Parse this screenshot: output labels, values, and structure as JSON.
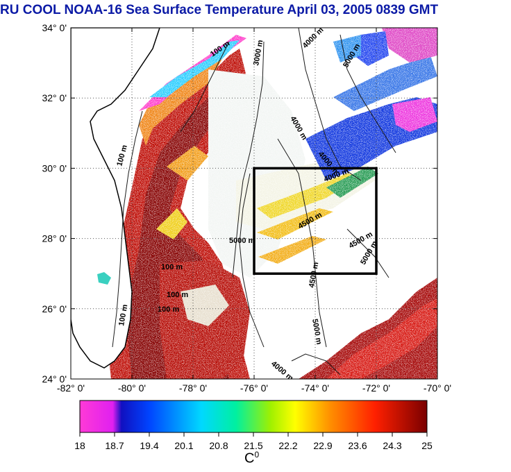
{
  "title": "RU COOL  NOAA-16 Sea Surface Temperature April 03, 2005 0839 GMT",
  "map": {
    "lat_ticks": [
      "34° 0'",
      "32° 0'",
      "30° 0'",
      "28° 0'",
      "26° 0'",
      "24° 0'"
    ],
    "lon_ticks": [
      "-82° 0'",
      "-80° 0'",
      "-78° 0'",
      "-76° 0'",
      "-74° 0'",
      "-72° 0'",
      "-70° 0'"
    ],
    "lat_range": [
      24,
      34
    ],
    "lon_range": [
      -82,
      -70
    ],
    "study_box": {
      "lon": [
        -76,
        -72
      ],
      "lat": [
        27,
        30
      ]
    },
    "contour_labels": [
      "100 m",
      "100 m",
      "100 m",
      "100 m",
      "100 m",
      "100 m",
      "3000 m",
      "4000 m",
      "4000 m",
      "4000 m",
      "4000 m",
      "5000 m",
      "5000 m",
      "5000 m",
      "5000 m",
      "4500 m",
      "4500 m",
      "4500 m",
      "4000 m"
    ]
  },
  "colorbar": {
    "ticks": [
      "18",
      "18.7",
      "19.4",
      "20.1",
      "20.8",
      "21.5",
      "22.2",
      "22.9",
      "23.6",
      "24.3",
      "25"
    ],
    "unit": "C",
    "unit_sup": "0",
    "range": [
      18,
      25
    ]
  }
}
